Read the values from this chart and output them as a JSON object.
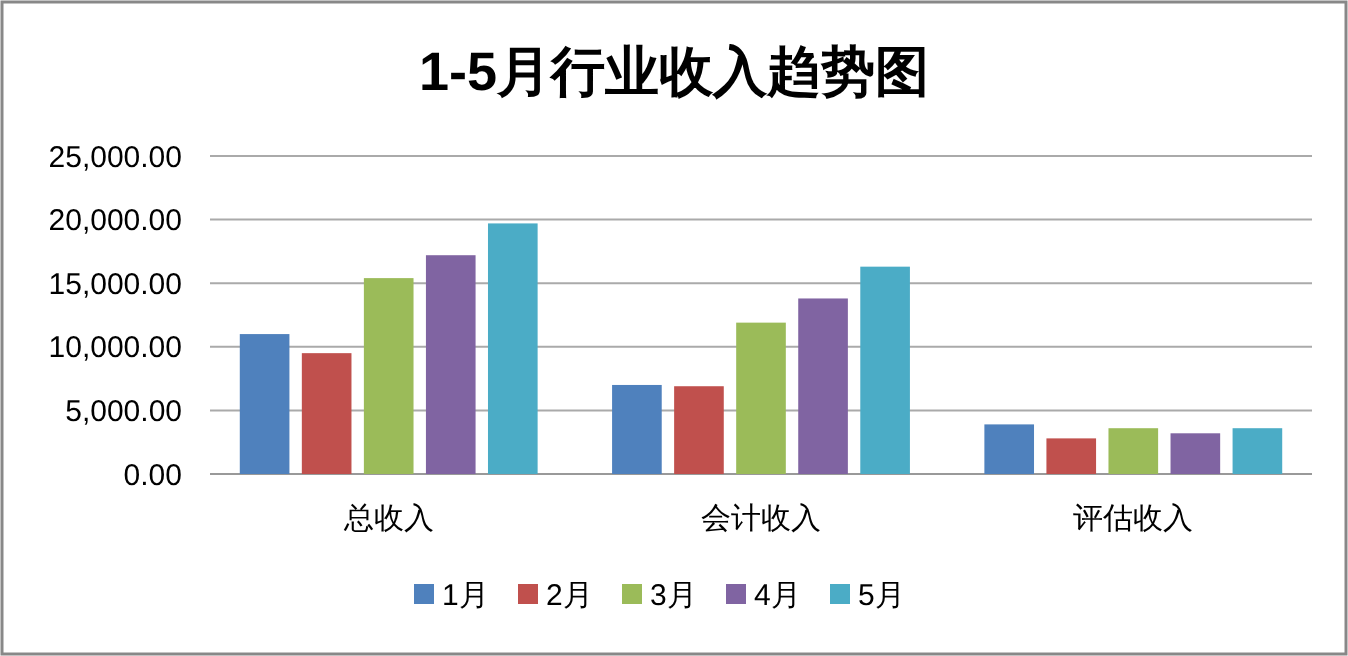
{
  "chart_data": {
    "type": "bar",
    "title": "1-5月行业收入趋势图",
    "categories": [
      "总收入",
      "会计收入",
      "评估收入"
    ],
    "series": [
      {
        "name": "1月",
        "color": "#4f81bd",
        "values": [
          11000,
          7000,
          3900
        ]
      },
      {
        "name": "2月",
        "color": "#c0504d",
        "values": [
          9500,
          6900,
          2800
        ]
      },
      {
        "name": "3月",
        "color": "#9bbb59",
        "values": [
          15400,
          11900,
          3600
        ]
      },
      {
        "name": "4月",
        "color": "#8064a2",
        "values": [
          17200,
          13800,
          3200
        ]
      },
      {
        "name": "5月",
        "color": "#4bacc6",
        "values": [
          19700,
          16300,
          3600
        ]
      }
    ],
    "ylim": [
      0,
      25000
    ],
    "yticks": [
      {
        "value": 0,
        "label": "0.00"
      },
      {
        "value": 5000,
        "label": "5,000.00"
      },
      {
        "value": 10000,
        "label": "10,000.00"
      },
      {
        "value": 15000,
        "label": "15,000.00"
      },
      {
        "value": 20000,
        "label": "20,000.00"
      },
      {
        "value": 25000,
        "label": "25,000.00"
      }
    ],
    "grid": "y",
    "legend": "bottom"
  }
}
